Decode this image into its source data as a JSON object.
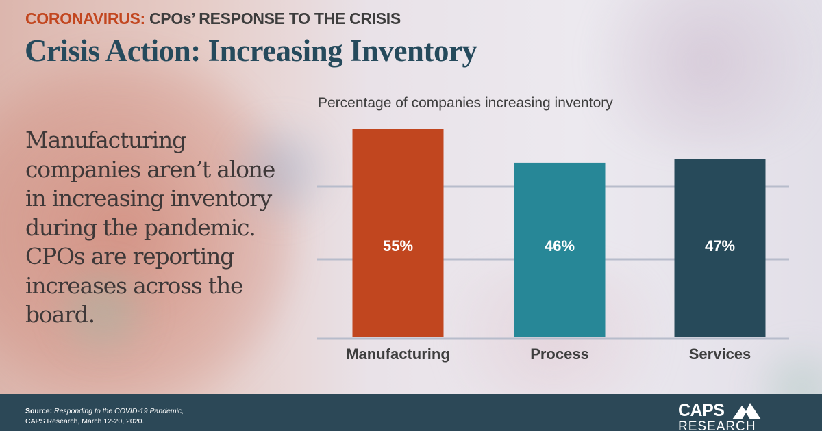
{
  "header": {
    "kicker_accent": "CORONAVIRUS:",
    "kicker_rest": " CPOs’ RESPONSE TO THE CRISIS",
    "title": "Crisis Action:  Increasing Inventory"
  },
  "body_text": "Manufacturing companies aren’t alone in increasing inventory during the pandemic. CPOs are reporting increases across the board.",
  "colors": {
    "accent": "#c2461f",
    "title": "#254a5c",
    "footer": "#2c4857",
    "manufacturing": "#c1461f",
    "process": "#278797",
    "services": "#274a5a",
    "gridline": "#b7bccb"
  },
  "chart_data": {
    "type": "bar",
    "title": "Percentage of companies increasing inventory",
    "categories": [
      "Manufacturing",
      "Process",
      "Services"
    ],
    "values": [
      55,
      46,
      47
    ],
    "value_labels": [
      "55%",
      "46%",
      "47%"
    ],
    "xlabel": "",
    "ylabel": "",
    "ylim": [
      0,
      60
    ],
    "grid": true,
    "legend": "none"
  },
  "footer": {
    "source_label": "Source:",
    "source_title": " Responding to the COVID-19 Pandemic,",
    "source_line2": "CAPS Research, March 12-20, 2020.",
    "logo_top": "CAPS",
    "logo_bottom": "RESEARCH"
  }
}
